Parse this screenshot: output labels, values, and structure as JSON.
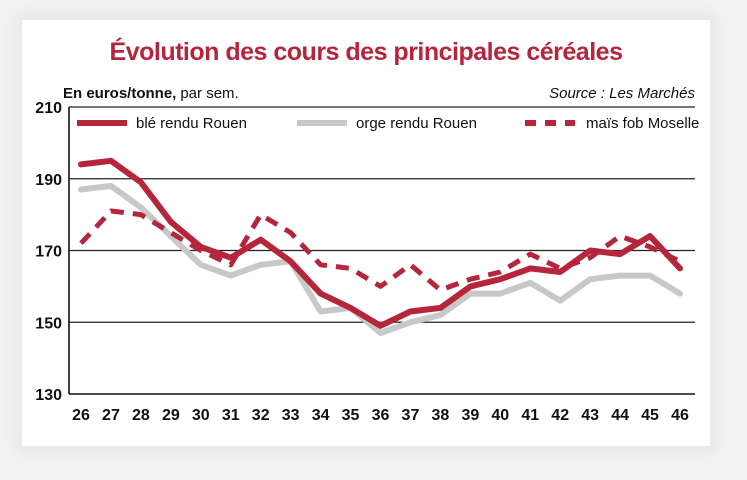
{
  "chart_data": {
    "type": "line",
    "title": "Évolution des cours des principales céréales",
    "unit_label_bold": "En euros/tonne,",
    "unit_label_rest": "par sem.",
    "source": "Source : Les Marchés",
    "x": [
      "26",
      "27",
      "28",
      "29",
      "30",
      "31",
      "32",
      "33",
      "34",
      "35",
      "36",
      "37",
      "38",
      "39",
      "40",
      "41",
      "42",
      "43",
      "44",
      "45",
      "46"
    ],
    "yticks": [
      "130",
      "150",
      "170",
      "190",
      "210"
    ],
    "ylim": [
      130,
      210
    ],
    "grid": true,
    "legend_position": "top",
    "series": [
      {
        "name": "blé rendu Rouen",
        "color": "#b5263d",
        "style": "solid",
        "values": [
          194,
          195,
          189,
          178,
          171,
          168,
          173,
          167,
          158,
          154,
          149,
          153,
          154,
          160,
          162,
          165,
          164,
          170,
          169,
          174,
          165
        ]
      },
      {
        "name": "orge rendu Rouen",
        "color": "#c8c8c8",
        "style": "solid",
        "values": [
          187,
          188,
          182,
          174,
          166,
          163,
          166,
          167,
          153,
          154,
          147,
          150,
          152,
          158,
          158,
          161,
          156,
          162,
          163,
          163,
          158
        ]
      },
      {
        "name": "maïs fob Moselle",
        "color": "#b5263d",
        "style": "dashed",
        "values": [
          172,
          181,
          180,
          175,
          170,
          166,
          180,
          175,
          166,
          165,
          160,
          166,
          159,
          162,
          164,
          169,
          165,
          168,
          174,
          171,
          167
        ]
      }
    ]
  }
}
